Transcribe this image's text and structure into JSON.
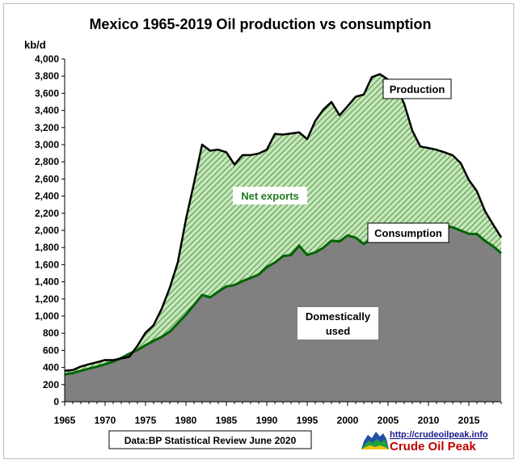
{
  "chart_data": {
    "type": "area",
    "title": "Mexico 1965-2019 Oil production vs consumption",
    "ylabel": "kb/d",
    "xlabel": "",
    "xlim": [
      1965,
      2019
    ],
    "ylim": [
      0,
      4000
    ],
    "yticks": [
      0,
      200,
      400,
      600,
      800,
      1000,
      1200,
      1400,
      1600,
      1800,
      2000,
      2200,
      2400,
      2600,
      2800,
      3000,
      3200,
      3400,
      3600,
      3800,
      4000
    ],
    "ytick_labels": [
      "0",
      "200",
      "400",
      "600",
      "800",
      "1,000",
      "1,200",
      "1,400",
      "1,600",
      "1,800",
      "2,000",
      "2,200",
      "2,400",
      "2,600",
      "2,800",
      "3,000",
      "3,200",
      "3,400",
      "3,600",
      "3,800",
      "4,000"
    ],
    "xticks": [
      1965,
      1970,
      1975,
      1980,
      1985,
      1990,
      1995,
      2000,
      2005,
      2010,
      2015
    ],
    "xtick_labels": [
      "1965",
      "1970",
      "1975",
      "1980",
      "1985",
      "1990",
      "1995",
      "2000",
      "2005",
      "2010",
      "2015"
    ],
    "grid": false,
    "legend": "none",
    "x": [
      1965,
      1966,
      1967,
      1968,
      1969,
      1970,
      1971,
      1972,
      1973,
      1974,
      1975,
      1976,
      1977,
      1978,
      1979,
      1980,
      1981,
      1982,
      1983,
      1984,
      1985,
      1986,
      1987,
      1988,
      1989,
      1990,
      1991,
      1992,
      1993,
      1994,
      1995,
      1996,
      1997,
      1998,
      1999,
      2000,
      2001,
      2002,
      2003,
      2004,
      2005,
      2006,
      2007,
      2008,
      2009,
      2010,
      2011,
      2012,
      2013,
      2014,
      2015,
      2016,
      2017,
      2018,
      2019
    ],
    "series": [
      {
        "name": "Production",
        "color": "#000000",
        "values": [
          362,
          370,
          411,
          438,
          461,
          487,
          486,
          506,
          525,
          653,
          806,
          894,
          1085,
          1330,
          1629,
          2129,
          2553,
          3001,
          2930,
          2942,
          2912,
          2768,
          2879,
          2879,
          2897,
          2941,
          3126,
          3118,
          3131,
          3144,
          3065,
          3278,
          3410,
          3499,
          3343,
          3450,
          3560,
          3585,
          3789,
          3824,
          3760,
          3689,
          3477,
          3165,
          2979,
          2961,
          2941,
          2911,
          2876,
          2784,
          2588,
          2456,
          2224,
          2068,
          1918
        ]
      },
      {
        "name": "Consumption",
        "color": "#006400",
        "values": [
          319,
          335,
          361,
          386,
          410,
          438,
          468,
          511,
          561,
          604,
          660,
          711,
          757,
          818,
          917,
          1016,
          1130,
          1246,
          1219,
          1285,
          1345,
          1362,
          1408,
          1445,
          1485,
          1571,
          1624,
          1699,
          1712,
          1822,
          1712,
          1744,
          1798,
          1880,
          1871,
          1942,
          1914,
          1842,
          1898,
          1973,
          2019,
          2047,
          2072,
          2078,
          2015,
          2031,
          2050,
          2052,
          2036,
          1998,
          1960,
          1957,
          1877,
          1815,
          1733
        ]
      }
    ],
    "annotations": [
      {
        "text": "Production",
        "x": 2010,
        "y": 3680
      },
      {
        "text": "Net exports",
        "x": 1990,
        "y": 2400
      },
      {
        "text": "Consumption",
        "x": 2010,
        "y": 2020
      },
      {
        "text": "Domestically used",
        "x": 2001,
        "y": 910
      }
    ]
  },
  "labels": {
    "production": "Production",
    "net_exports": "Net exports",
    "consumption": "Consumption",
    "domestic_line1": "Domestically",
    "domestic_line2": "used"
  },
  "colors": {
    "production_line": "#000000",
    "consumption_line": "#006400",
    "net_exports_fill": "#c6e6b8",
    "net_exports_hatch": "#2e7d32",
    "domestic_fill": "#808080",
    "net_exports_text": "#1e7d1e"
  },
  "source": "Data:BP Statistical Review June 2020",
  "logo": {
    "url": "http://crudeoilpeak.info",
    "name": "Crude Oil Peak",
    "icon": "stacked-area-chart-icon"
  }
}
